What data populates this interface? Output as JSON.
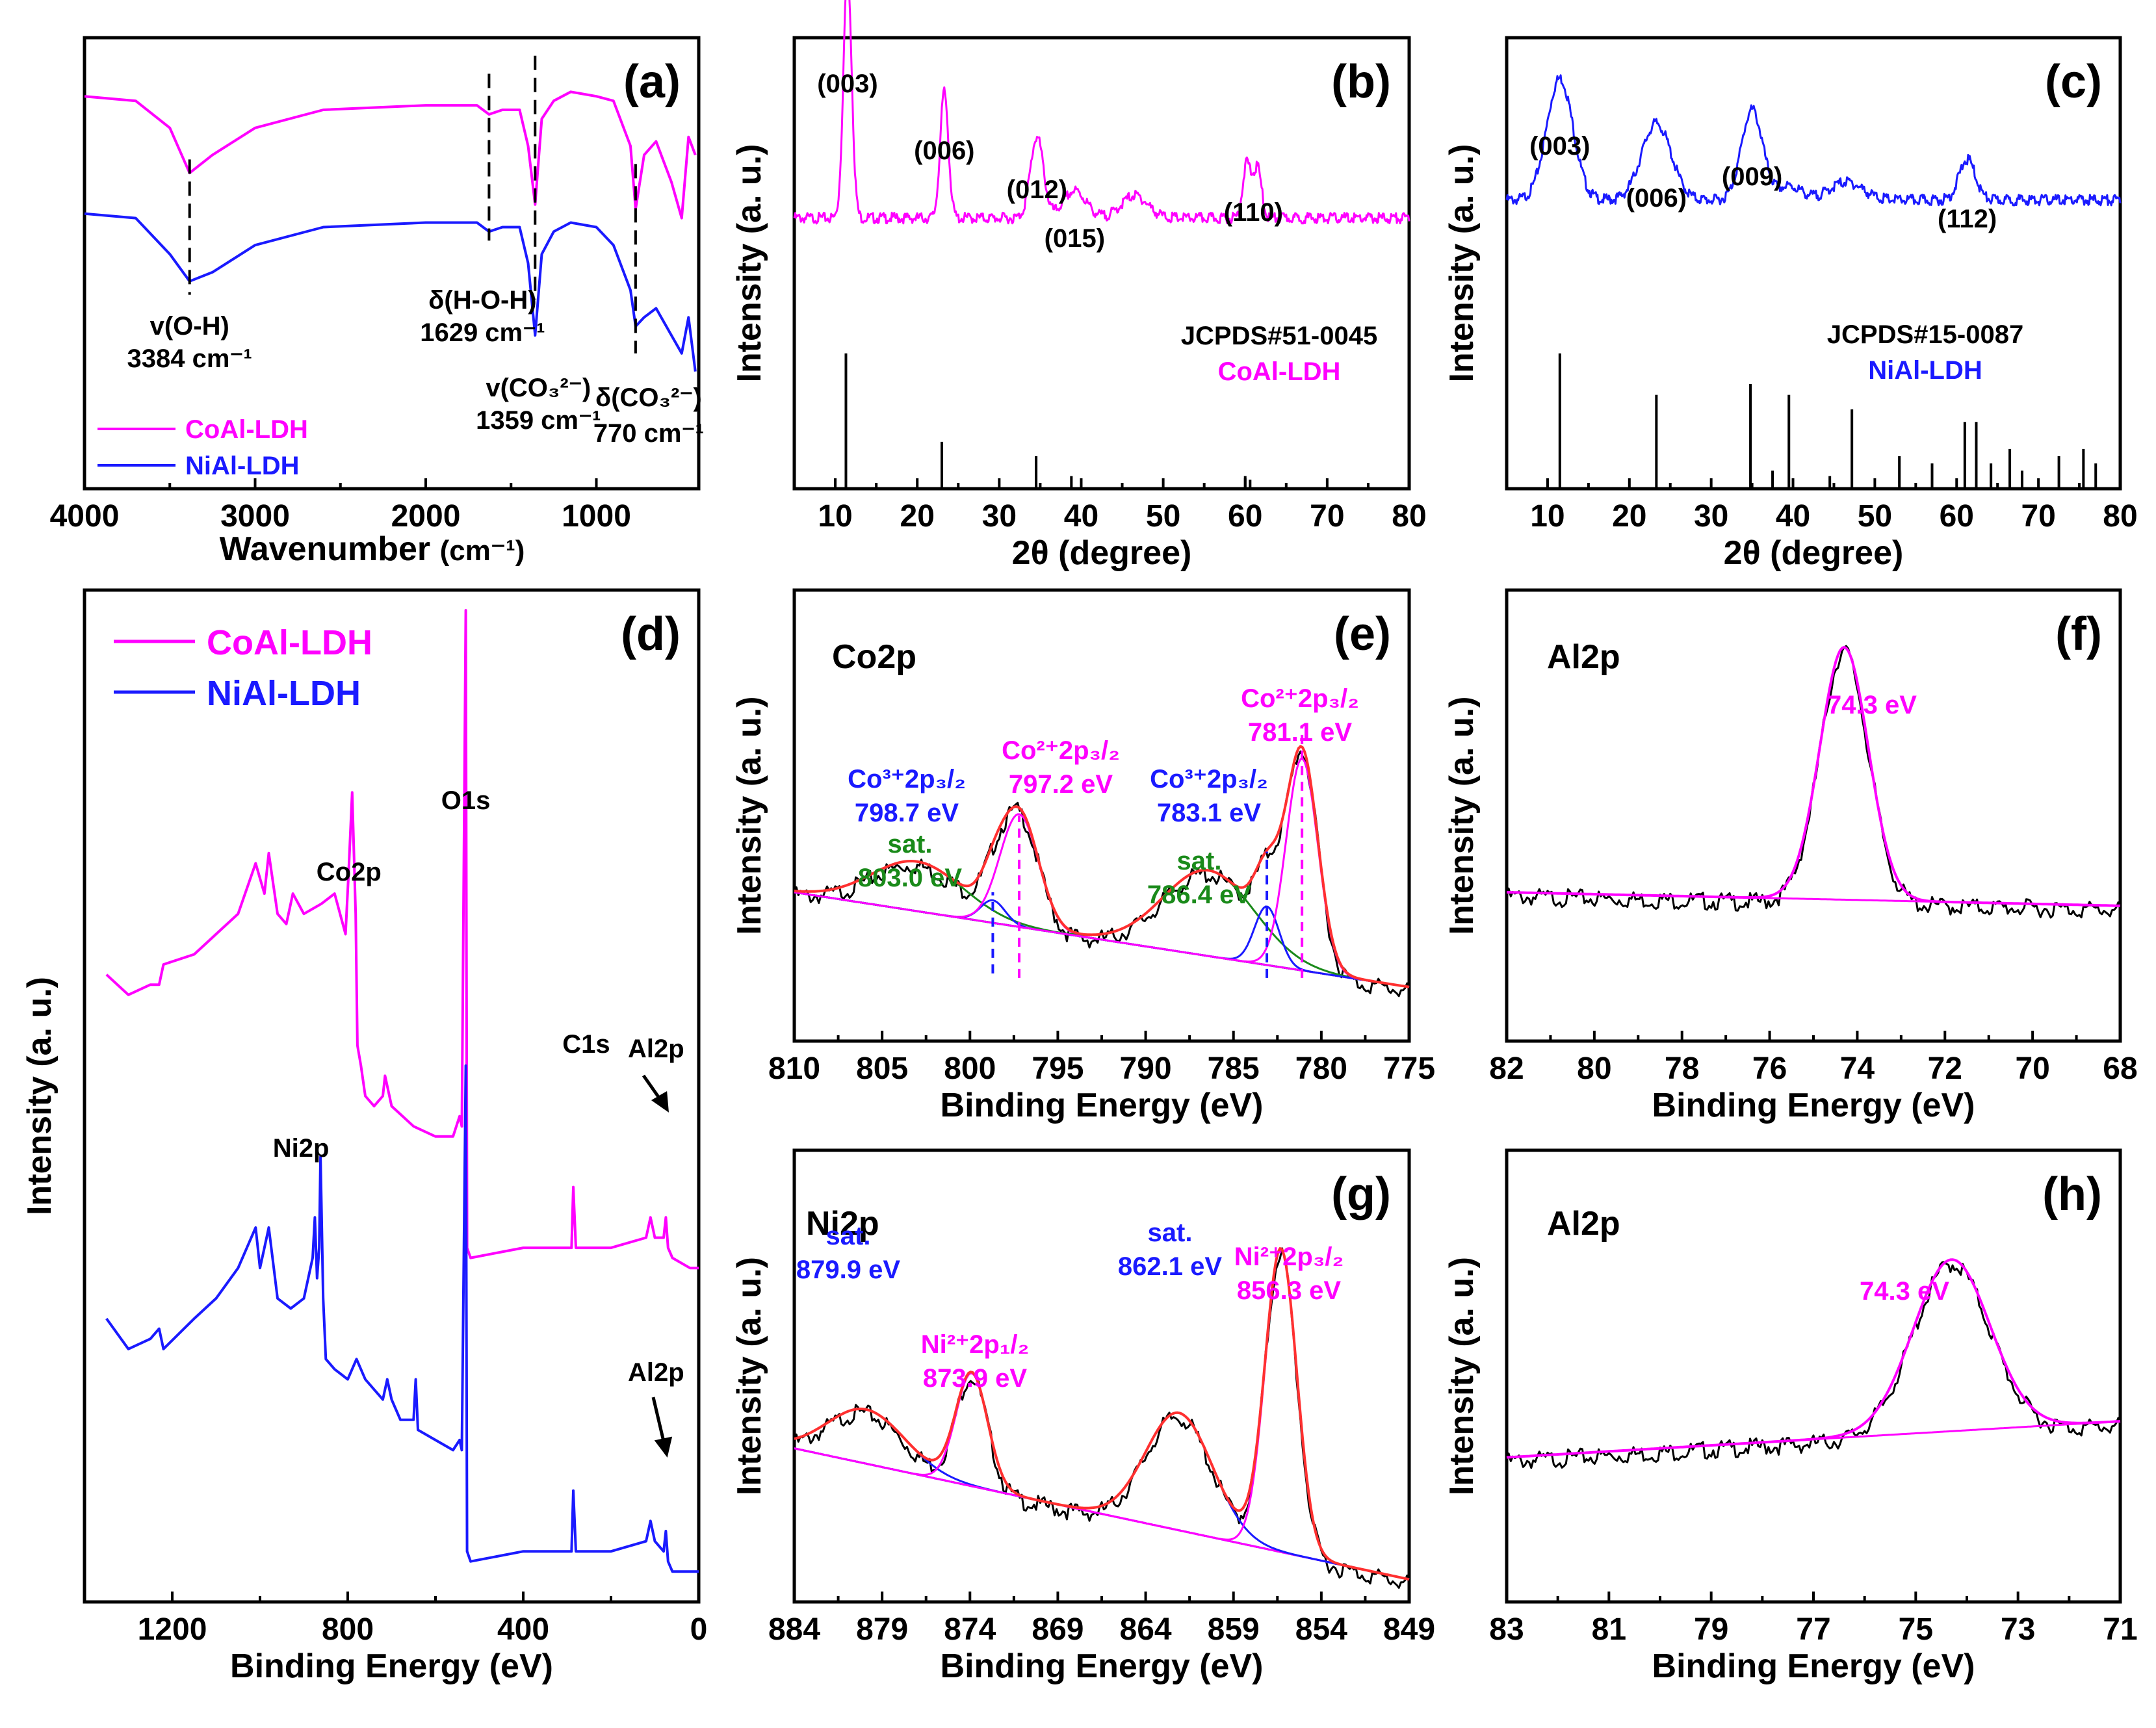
{
  "colors": {
    "magenta": "#ff00ff",
    "blue": "#1a1aff",
    "black": "#000000",
    "red": "#ff3030",
    "green": "#1a8a1a"
  },
  "chart_data": [
    {
      "id": "a",
      "type": "line",
      "panel_label": "(a)",
      "xlabel": "Wavenumber",
      "xunit": "(cm⁻¹)",
      "ylabel": "",
      "xlim": [
        4000,
        400
      ],
      "ylim": [
        0,
        1
      ],
      "x_reversed": true,
      "xticks": [
        4000,
        3000,
        2000,
        1000
      ],
      "series": [
        {
          "name": "CoAl-LDH",
          "color": "#ff00ff",
          "x": [
            4000,
            3700,
            3500,
            3384,
            3250,
            3000,
            2600,
            2000,
            1700,
            1629,
            1550,
            1450,
            1400,
            1359,
            1320,
            1250,
            1150,
            1000,
            900,
            800,
            770,
            720,
            650,
            560,
            500,
            460,
            420
          ],
          "y": [
            0.87,
            0.86,
            0.8,
            0.7,
            0.74,
            0.8,
            0.84,
            0.85,
            0.85,
            0.83,
            0.84,
            0.84,
            0.76,
            0.63,
            0.82,
            0.86,
            0.88,
            0.87,
            0.86,
            0.76,
            0.62,
            0.74,
            0.77,
            0.68,
            0.6,
            0.78,
            0.74
          ]
        },
        {
          "name": "NiAl-LDH",
          "color": "#1a1aff",
          "x": [
            4000,
            3700,
            3500,
            3384,
            3250,
            3000,
            2600,
            2000,
            1700,
            1629,
            1550,
            1450,
            1400,
            1359,
            1320,
            1250,
            1150,
            1000,
            900,
            800,
            770,
            720,
            650,
            560,
            500,
            460,
            420
          ],
          "y": [
            0.61,
            0.6,
            0.52,
            0.46,
            0.48,
            0.54,
            0.58,
            0.59,
            0.59,
            0.57,
            0.58,
            0.58,
            0.5,
            0.34,
            0.52,
            0.57,
            0.59,
            0.58,
            0.54,
            0.44,
            0.36,
            0.38,
            0.4,
            0.34,
            0.3,
            0.38,
            0.26
          ]
        }
      ],
      "legend": [
        "CoAl-LDH",
        "NiAl-LDH"
      ],
      "annotations": [
        {
          "line1": "v(O-H)",
          "line2": "3384 cm⁻¹",
          "x": 3384
        },
        {
          "line1": "δ(H-O-H)",
          "line2": "1629 cm⁻¹",
          "x": 1629
        },
        {
          "line1": "v(CO₃²⁻)",
          "line2": "1359 cm⁻¹",
          "x": 1359
        },
        {
          "line1": "δ(CO₃²⁻)",
          "line2": "770 cm⁻¹",
          "x": 770
        }
      ]
    },
    {
      "id": "b",
      "type": "line",
      "panel_label": "(b)",
      "xlabel": "2θ (degree)",
      "ylabel": "Intensity (a. u.)",
      "xlim": [
        5,
        80
      ],
      "ylim": [
        0,
        1
      ],
      "xticks": [
        10,
        20,
        30,
        40,
        50,
        60,
        70,
        80
      ],
      "series": [
        {
          "name": "CoAl-LDH",
          "color": "#ff00ff",
          "peaks": [
            [
              11.5,
              0.55,
              0.5
            ],
            [
              23.3,
              0.28,
              0.5
            ],
            [
              34.6,
              0.18,
              0.8
            ],
            [
              39.2,
              0.06,
              1.4
            ],
            [
              46.5,
              0.05,
              1.6
            ],
            [
              60.2,
              0.12,
              0.5
            ],
            [
              61.5,
              0.11,
              0.5
            ]
          ],
          "baseline": 0.6
        }
      ],
      "reference": {
        "name": "JCPDS#51-0045",
        "x": [
          11.3,
          23.0,
          34.5,
          38.8,
          60.0,
          60.6
        ],
        "h": [
          0.75,
          0.26,
          0.18,
          0.07,
          0.07,
          0.05
        ]
      },
      "peak_labels": [
        {
          "text": "(003)",
          "x": 11.5
        },
        {
          "text": "(006)",
          "x": 23.3
        },
        {
          "text": "(012)",
          "x": 34.6
        },
        {
          "text": "(015)",
          "x": 39.2
        },
        {
          "text": "(110)",
          "x": 61.0
        }
      ],
      "ref_label": "JCPDS#51-0045",
      "sample_label": "CoAl-LDH"
    },
    {
      "id": "c",
      "type": "line",
      "panel_label": "(c)",
      "xlabel": "2θ (degree)",
      "ylabel": "Intensity (a. u.)",
      "xlim": [
        5,
        80
      ],
      "ylim": [
        0,
        1
      ],
      "xticks": [
        10,
        20,
        30,
        40,
        50,
        60,
        70,
        80
      ],
      "series": [
        {
          "name": "NiAl-LDH",
          "color": "#1a1aff",
          "peaks": [
            [
              11.5,
              0.27,
              1.6
            ],
            [
              23.3,
              0.17,
              1.8
            ],
            [
              35.0,
              0.2,
              1.3
            ],
            [
              39.6,
              0.03,
              1.5
            ],
            [
              46.5,
              0.04,
              2.0
            ],
            [
              61.3,
              0.09,
              1.0
            ]
          ],
          "baseline": 0.64
        }
      ],
      "reference": {
        "name": "JCPDS#15-0087",
        "x": [
          11.5,
          23.3,
          34.8,
          37.5,
          39.5,
          44.5,
          47.2,
          53.0,
          57.0,
          61.0,
          62.4,
          64.2,
          66.5,
          68.0,
          72.5,
          75.5,
          77.0
        ],
        "h": [
          0.75,
          0.52,
          0.58,
          0.1,
          0.52,
          0.07,
          0.44,
          0.18,
          0.14,
          0.37,
          0.37,
          0.14,
          0.22,
          0.1,
          0.18,
          0.22,
          0.14
        ]
      },
      "peak_labels": [
        {
          "text": "(003)",
          "x": 11.5
        },
        {
          "text": "(006)",
          "x": 23.3
        },
        {
          "text": "(009)",
          "x": 35.0
        },
        {
          "text": "(112)",
          "x": 61.3
        }
      ],
      "ref_label": "JCPDS#15-0087",
      "sample_label": "NiAl-LDH"
    },
    {
      "id": "d",
      "type": "line",
      "panel_label": "(d)",
      "xlabel": "Binding Energy (eV)",
      "ylabel": "Intensity (a. u.)",
      "xlim": [
        1400,
        0
      ],
      "ylim": [
        0,
        1
      ],
      "xticks": [
        1200,
        800,
        400,
        0
      ],
      "series": [
        {
          "name": "CoAl-LDH",
          "color": "#ff00ff",
          "x": [
            1350,
            1300,
            1250,
            1230,
            1220,
            1150,
            1100,
            1050,
            1010,
            990,
            980,
            960,
            940,
            925,
            900,
            860,
            830,
            805,
            798,
            790,
            782,
            778,
            770,
            760,
            740,
            720,
            715,
            700,
            650,
            600,
            560,
            545,
            540,
            531,
            528,
            520,
            400,
            290,
            286,
            280,
            200,
            120,
            110,
            100,
            80,
            75,
            70,
            60,
            20,
            0
          ],
          "y": [
            0.62,
            0.6,
            0.61,
            0.61,
            0.63,
            0.64,
            0.66,
            0.68,
            0.73,
            0.7,
            0.74,
            0.68,
            0.67,
            0.7,
            0.68,
            0.69,
            0.7,
            0.66,
            0.72,
            0.8,
            0.68,
            0.55,
            0.53,
            0.5,
            0.49,
            0.5,
            0.52,
            0.49,
            0.47,
            0.46,
            0.46,
            0.48,
            0.47,
            0.98,
            0.35,
            0.34,
            0.35,
            0.35,
            0.41,
            0.35,
            0.35,
            0.36,
            0.38,
            0.36,
            0.36,
            0.38,
            0.35,
            0.34,
            0.33,
            0.33
          ]
        },
        {
          "name": "NiAl-LDH",
          "color": "#1a1aff",
          "x": [
            1350,
            1300,
            1250,
            1230,
            1220,
            1150,
            1100,
            1050,
            1010,
            1000,
            990,
            980,
            960,
            930,
            900,
            880,
            875,
            870,
            865,
            862,
            856,
            850,
            830,
            800,
            780,
            760,
            720,
            710,
            700,
            680,
            650,
            645,
            640,
            600,
            560,
            545,
            540,
            531,
            528,
            520,
            400,
            290,
            286,
            280,
            200,
            120,
            110,
            100,
            80,
            75,
            70,
            60,
            20,
            0
          ],
          "y": [
            0.28,
            0.25,
            0.26,
            0.27,
            0.25,
            0.28,
            0.3,
            0.33,
            0.37,
            0.33,
            0.35,
            0.37,
            0.3,
            0.29,
            0.3,
            0.34,
            0.38,
            0.32,
            0.35,
            0.44,
            0.3,
            0.24,
            0.23,
            0.22,
            0.24,
            0.22,
            0.2,
            0.22,
            0.2,
            0.18,
            0.18,
            0.22,
            0.17,
            0.16,
            0.15,
            0.16,
            0.15,
            0.53,
            0.05,
            0.04,
            0.05,
            0.05,
            0.11,
            0.05,
            0.05,
            0.06,
            0.08,
            0.06,
            0.05,
            0.07,
            0.04,
            0.03,
            0.03,
            0.03
          ]
        }
      ],
      "legend": [
        "CoAl-LDH",
        "NiAl-LDH"
      ],
      "annotations": [
        {
          "text": "O1s",
          "x": 531
        },
        {
          "text": "Co2p",
          "x": 790
        },
        {
          "text": "C1s",
          "x": 286
        },
        {
          "text": "Al2p",
          "x": 75
        },
        {
          "text": "Ni2p",
          "x": 862
        },
        {
          "text": "Al2p",
          "x": 75
        }
      ]
    },
    {
      "id": "e",
      "type": "line",
      "panel_label": "(e)",
      "element": "Co2p",
      "xlabel": "Binding Energy (eV)",
      "ylabel": "Intensity (a. u.)",
      "xlim": [
        810,
        775
      ],
      "ylim": [
        0,
        1
      ],
      "xticks": [
        810,
        805,
        800,
        795,
        790,
        785,
        780,
        775
      ],
      "background": {
        "x": [
          810,
          775
        ],
        "y": [
          0.33,
          0.12
        ]
      },
      "components": [
        {
          "name": "sat. 803.0 eV",
          "color": "#1a8a1a",
          "center": 803.0,
          "height": 0.11,
          "width": 2.6
        },
        {
          "name": "Co3+ 2p3/2 798.7 eV",
          "color": "#1a1aff",
          "center": 798.7,
          "height": 0.05,
          "width": 0.7
        },
        {
          "name": "Co2+ 2p3/2 797.2 eV",
          "color": "#ff00ff",
          "center": 797.2,
          "height": 0.25,
          "width": 1.1
        },
        {
          "name": "sat. 786.4 eV",
          "color": "#1a8a1a",
          "center": 786.4,
          "height": 0.19,
          "width": 2.6
        },
        {
          "name": "Co3+ 2p3/2 783.1 eV",
          "color": "#1a1aff",
          "center": 783.1,
          "height": 0.13,
          "width": 0.7
        },
        {
          "name": "Co2+ 2p3/2 781.1 eV",
          "color": "#ff00ff",
          "center": 781.1,
          "height": 0.47,
          "width": 0.9
        }
      ],
      "labels": [
        {
          "l1": "sat.",
          "l2": "803.0 eV",
          "color": "#1a8a1a"
        },
        {
          "l1": "Co³⁺2p₃/₂",
          "l2": "798.7 eV",
          "color": "#1a1aff"
        },
        {
          "l1": "Co²⁺2p₃/₂",
          "l2": "797.2 eV",
          "color": "#ff00ff"
        },
        {
          "l1": "sat.",
          "l2": "786.4 eV",
          "color": "#1a8a1a"
        },
        {
          "l1": "Co³⁺2p₃/₂",
          "l2": "783.1 eV",
          "color": "#1a1aff"
        },
        {
          "l1": "Co²⁺2p₃/₂",
          "l2": "781.1 eV",
          "color": "#ff00ff"
        }
      ]
    },
    {
      "id": "f",
      "type": "line",
      "panel_label": "(f)",
      "element": "Al2p",
      "xlabel": "Binding Energy (eV)",
      "ylabel": "Intensity (a. u.)",
      "xlim": [
        82,
        68
      ],
      "ylim": [
        0,
        1
      ],
      "xticks": [
        82,
        80,
        78,
        76,
        74,
        72,
        70,
        68
      ],
      "background": {
        "x": [
          82,
          68
        ],
        "y": [
          0.33,
          0.3
        ]
      },
      "components": [
        {
          "name": "74.3 eV",
          "color": "#ff00ff",
          "center": 74.3,
          "height": 0.56,
          "width": 0.55
        }
      ],
      "labels": [
        {
          "l1": "74.3 eV",
          "color": "#ff00ff",
          "x": 74.3
        }
      ]
    },
    {
      "id": "g",
      "type": "line",
      "panel_label": "(g)",
      "element": "Ni2p",
      "xlabel": "Binding Energy (eV)",
      "ylabel": "Intensity (a. u.)",
      "xlim": [
        884,
        849
      ],
      "ylim": [
        0,
        1
      ],
      "xticks": [
        884,
        879,
        874,
        869,
        864,
        859,
        854,
        849
      ],
      "background": {
        "x": [
          884,
          849
        ],
        "y": [
          0.34,
          0.05
        ]
      },
      "components": [
        {
          "name": "sat. 879.9 eV",
          "color": "#1a1aff",
          "center": 879.9,
          "height": 0.12,
          "width": 2.2
        },
        {
          "name": "Ni2+ 2p1/2 873.9 eV",
          "color": "#ff00ff",
          "center": 873.9,
          "height": 0.25,
          "width": 0.9
        },
        {
          "name": "sat. 862.1 eV",
          "color": "#1a1aff",
          "center": 862.1,
          "height": 0.26,
          "width": 1.9
        },
        {
          "name": "Ni2+ 2p3/2 856.3 eV",
          "color": "#ff00ff",
          "center": 856.3,
          "height": 0.67,
          "width": 0.9
        }
      ],
      "labels": [
        {
          "l1": "sat.",
          "l2": "879.9 eV",
          "color": "#1a1aff"
        },
        {
          "l1": "Ni²⁺2p₁/₂",
          "l2": "873.9 eV",
          "color": "#ff00ff"
        },
        {
          "l1": "sat.",
          "l2": "862.1 eV",
          "color": "#1a1aff"
        },
        {
          "l1": "Ni²⁺2p₃/₂",
          "l2": "856.3 eV",
          "color": "#ff00ff"
        }
      ]
    },
    {
      "id": "h",
      "type": "line",
      "panel_label": "(h)",
      "element": "Al2p",
      "xlabel": "Binding Energy (eV)",
      "ylabel": "Intensity (a. u.)",
      "xlim": [
        83,
        71
      ],
      "ylim": [
        0,
        1
      ],
      "xticks": [
        83,
        81,
        79,
        77,
        75,
        73,
        71
      ],
      "background": {
        "x": [
          83,
          71
        ],
        "y": [
          0.32,
          0.4
        ]
      },
      "components": [
        {
          "name": "74.3 eV",
          "color": "#ff00ff",
          "center": 74.3,
          "height": 0.38,
          "width": 0.75
        }
      ],
      "labels": [
        {
          "l1": "74.3 eV",
          "color": "#ff00ff",
          "x": 74.3
        }
      ]
    }
  ]
}
